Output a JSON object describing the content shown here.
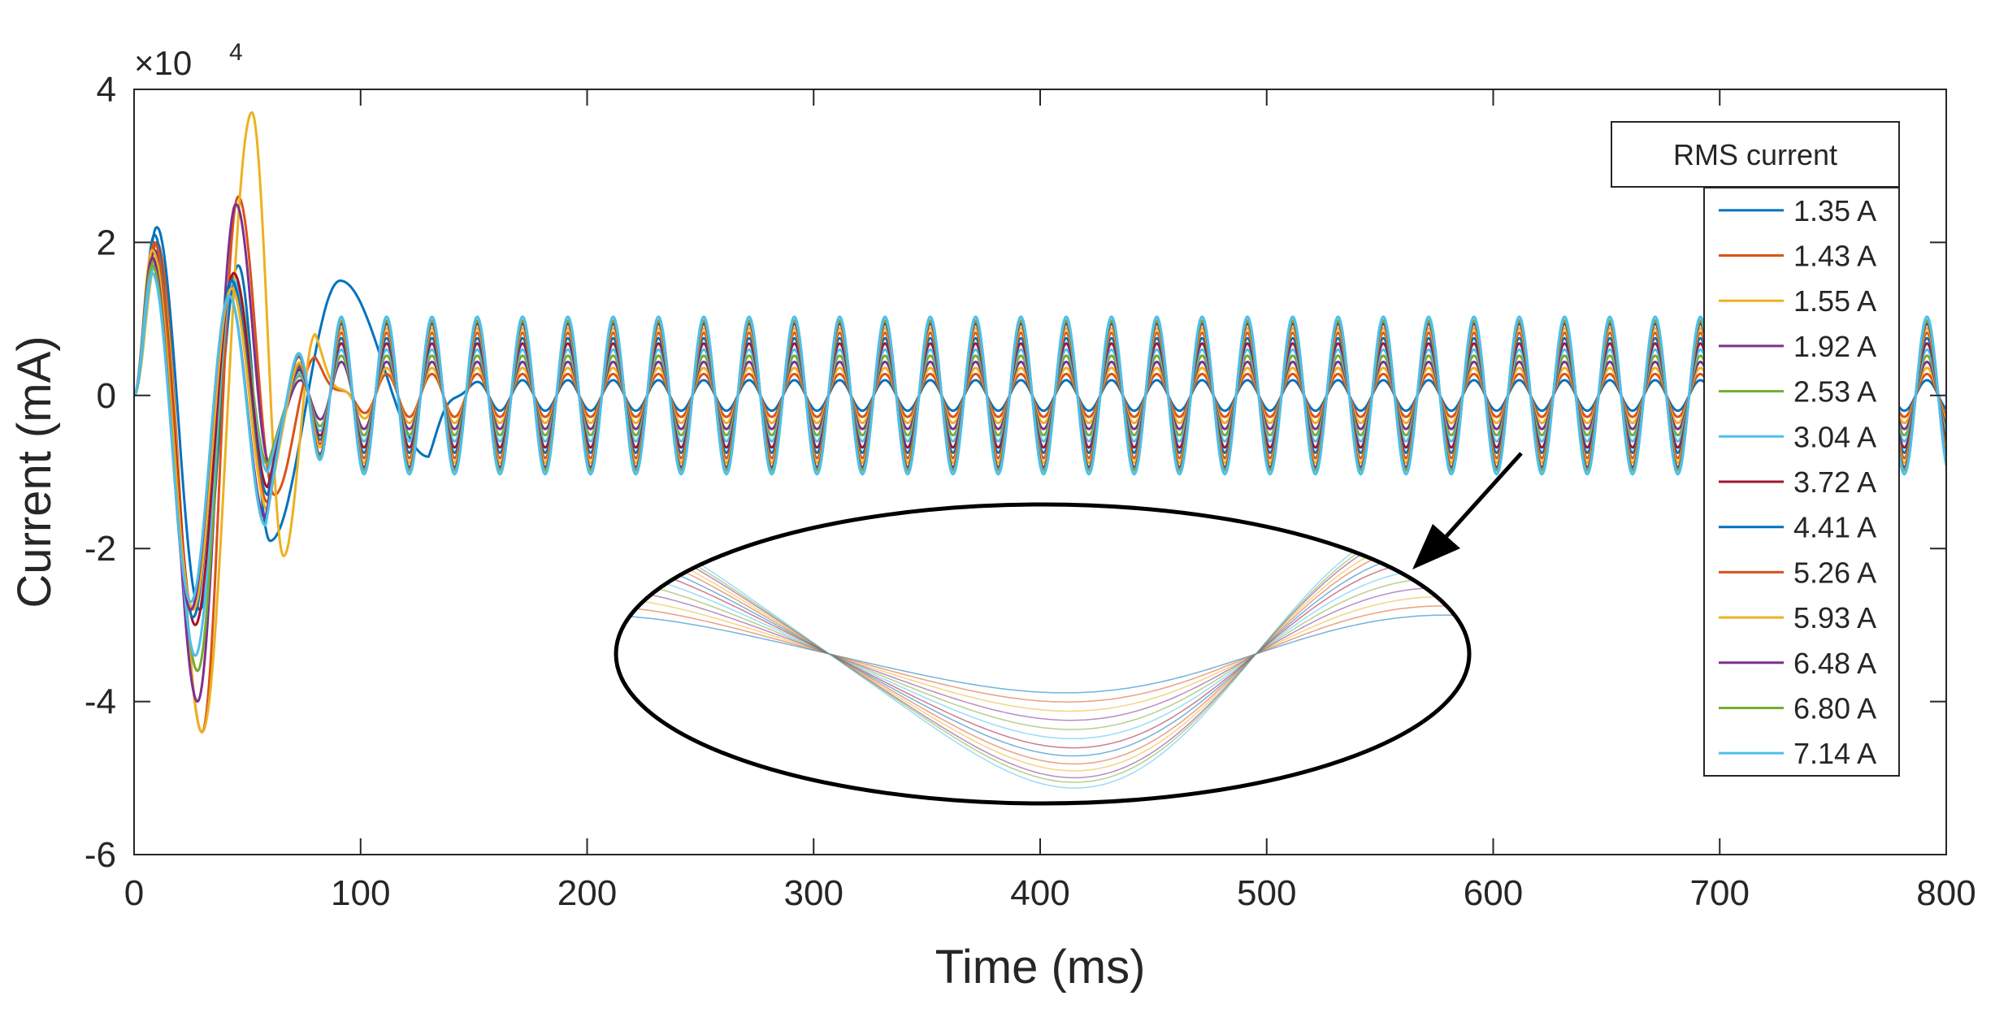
{
  "chart_data": {
    "type": "line",
    "title": "",
    "xlabel": "Time (ms)",
    "ylabel": "Current (mA)",
    "xlim": [
      0,
      800
    ],
    "ylim": [
      -60000,
      40000
    ],
    "exponent_label": "×10",
    "exponent_power": "4",
    "grid": false,
    "x_ticks": [
      0,
      100,
      200,
      300,
      400,
      500,
      600,
      700,
      800
    ],
    "x_tick_labels": [
      "0",
      "100",
      "200",
      "300",
      "400",
      "500",
      "600",
      "700",
      "800"
    ],
    "y_ticks": [
      -60000,
      -40000,
      -20000,
      0,
      20000,
      40000
    ],
    "y_tick_labels": [
      "-6",
      "-4",
      "-2",
      "0",
      "2",
      "4"
    ],
    "steady_state_frequency_hz": 50,
    "legend": {
      "title": "RMS current",
      "position": "right, outside axes",
      "entries": [
        "1.35 A",
        "1.43 A",
        "1.55 A",
        "1.92 A",
        "2.53 A",
        "3.04 A",
        "3.72 A",
        "4.41 A",
        "5.26 A",
        "5.93 A",
        "6.48 A",
        "6.80 A",
        "7.14 A"
      ]
    },
    "series": [
      {
        "name": "1.35 A",
        "color": "#0072BD",
        "steady_amplitude": 2000,
        "inrush_peaks": [
          [
            10,
            22000
          ],
          [
            29,
            -28000
          ],
          [
            46,
            17000
          ],
          [
            60,
            -19000
          ],
          [
            91,
            15000
          ],
          [
            130,
            -8000
          ]
        ]
      },
      {
        "name": "1.43 A",
        "color": "#D95319",
        "steady_amplitude": 2800,
        "inrush_peaks": [
          [
            10,
            20000
          ],
          [
            30,
            -44000
          ],
          [
            46,
            26000
          ],
          [
            62,
            -13000
          ],
          [
            80,
            5000
          ]
        ]
      },
      {
        "name": "1.55 A",
        "color": "#EDB120",
        "steady_amplitude": 3600,
        "inrush_peaks": [
          [
            10,
            18000
          ],
          [
            30,
            -44000
          ],
          [
            52,
            37000
          ],
          [
            66,
            -21000
          ],
          [
            80,
            8000
          ]
        ]
      },
      {
        "name": "1.92 A",
        "color": "#7E2F8E",
        "steady_amplitude": 4400,
        "inrush_peaks": [
          [
            9,
            19000
          ],
          [
            28,
            -40000
          ],
          [
            45,
            25000
          ],
          [
            60,
            -9000
          ]
        ]
      },
      {
        "name": "2.53 A",
        "color": "#77AC30",
        "steady_amplitude": 5200,
        "inrush_peaks": [
          [
            9,
            18000
          ],
          [
            28,
            -36000
          ],
          [
            44,
            16000
          ],
          [
            59,
            -9000
          ]
        ]
      },
      {
        "name": "3.04 A",
        "color": "#4DBEEE",
        "steady_amplitude": 6000,
        "inrush_peaks": [
          [
            9,
            17000
          ],
          [
            27,
            -34000
          ],
          [
            44,
            15000
          ],
          [
            59,
            -10000
          ]
        ]
      },
      {
        "name": "3.72 A",
        "color": "#A2142F",
        "steady_amplitude": 6800,
        "inrush_peaks": [
          [
            9,
            20000
          ],
          [
            27,
            -30000
          ],
          [
            44,
            16000
          ],
          [
            59,
            -12000
          ]
        ]
      },
      {
        "name": "4.41 A",
        "color": "#0072BD",
        "steady_amplitude": 7500,
        "inrush_peaks": [
          [
            9,
            21000
          ],
          [
            26,
            -29000
          ],
          [
            43,
            15000
          ],
          [
            59,
            -13000
          ]
        ]
      },
      {
        "name": "5.26 A",
        "color": "#D95319",
        "steady_amplitude": 8200,
        "inrush_peaks": [
          [
            9,
            20000
          ],
          [
            26,
            -28000
          ],
          [
            43,
            14000
          ],
          [
            59,
            -14000
          ]
        ]
      },
      {
        "name": "5.93 A",
        "color": "#EDB120",
        "steady_amplitude": 8800,
        "inrush_peaks": [
          [
            8,
            19000
          ],
          [
            26,
            -28000
          ],
          [
            43,
            14000
          ],
          [
            59,
            -15000
          ]
        ]
      },
      {
        "name": "6.48 A",
        "color": "#7E2F8E",
        "steady_amplitude": 9400,
        "inrush_peaks": [
          [
            8,
            18000
          ],
          [
            25,
            -28000
          ],
          [
            42,
            13000
          ],
          [
            58,
            -16000
          ]
        ]
      },
      {
        "name": "6.80 A",
        "color": "#77AC30",
        "steady_amplitude": 9800,
        "inrush_peaks": [
          [
            8,
            17000
          ],
          [
            25,
            -27000
          ],
          [
            42,
            13000
          ],
          [
            58,
            -17000
          ]
        ]
      },
      {
        "name": "7.14 A",
        "color": "#4DBEEE",
        "steady_amplitude": 10300,
        "inrush_peaks": [
          [
            8,
            16000
          ],
          [
            25,
            -27000
          ],
          [
            42,
            13000
          ],
          [
            58,
            -17000
          ]
        ]
      }
    ],
    "annotation": {
      "type": "zoom inset",
      "description": "magnified single cycle of the steady-state waveforms",
      "arrow_from_x": 620,
      "arrow_from_y": -8000,
      "arrow_to_x": 565,
      "arrow_to_y": -23000
    }
  }
}
